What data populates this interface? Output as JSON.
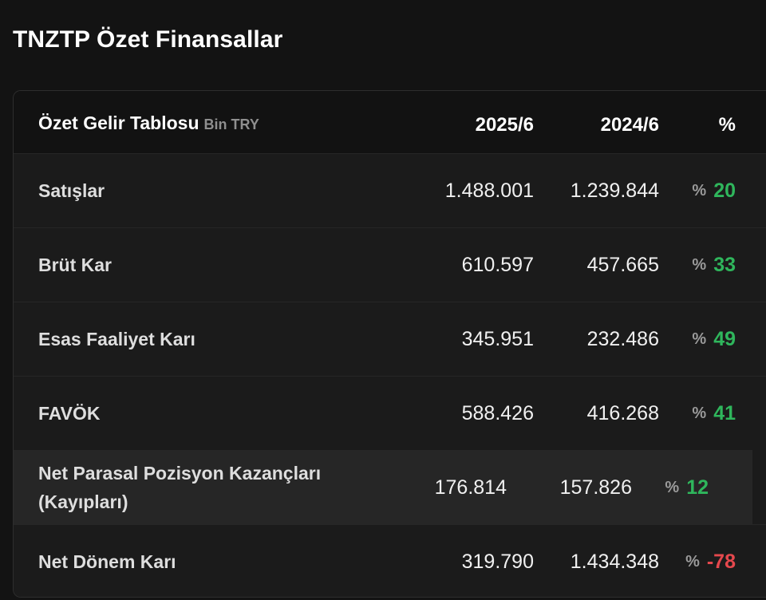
{
  "page": {
    "title": "TNZTP Özet Finansallar"
  },
  "table": {
    "title": "Özet Gelir Tablosu",
    "unit": "Bin TRY",
    "columns": [
      "2025/6",
      "2024/6",
      "%"
    ],
    "rows": [
      {
        "label": "Satışlar",
        "v2025": "1.488.001",
        "v2024": "1.239.844",
        "pct_sign": "%",
        "pct": "20",
        "trend": "positive"
      },
      {
        "label": "Brüt Kar",
        "v2025": "610.597",
        "v2024": "457.665",
        "pct_sign": "%",
        "pct": "33",
        "trend": "positive"
      },
      {
        "label": "Esas Faaliyet Karı",
        "v2025": "345.951",
        "v2024": "232.486",
        "pct_sign": "%",
        "pct": "49",
        "trend": "positive"
      },
      {
        "label": "FAVÖK",
        "v2025": "588.426",
        "v2024": "416.268",
        "pct_sign": "%",
        "pct": "41",
        "trend": "positive"
      },
      {
        "label": "Net Parasal Pozisyon Kazançları (Kayıpları)",
        "v2025": "176.814",
        "v2024": "157.826",
        "pct_sign": "%",
        "pct": "12",
        "trend": "positive",
        "highlighted": true
      },
      {
        "label": "Net Dönem Karı",
        "v2025": "319.790",
        "v2024": "1.434.348",
        "pct_sign": "%",
        "pct": "-78",
        "trend": "negative"
      }
    ]
  },
  "colors": {
    "positive": "#2fb65c",
    "negative": "#e5484d",
    "background": "#131313",
    "card": "#1b1b1b",
    "header": "#121212"
  }
}
